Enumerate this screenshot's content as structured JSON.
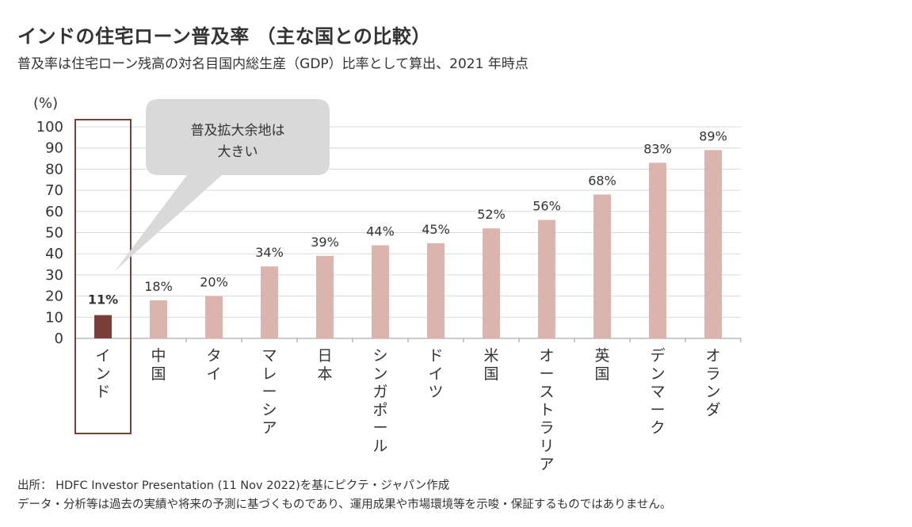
{
  "title": "インドの住宅ローン普及率 （主な国との比較）",
  "subtitle": "普及率は住宅ローン残高の対名目国内総生産（GDP）比率として算出、2021 年時点",
  "footer": {
    "source": "出所： HDFC Investor Presentation (11 Nov 2022)を基にピクテ・ジャパン作成",
    "disclaimer": "データ・分析等は過去の実績や将来の予測に基づくものであり、運用成果や市場環境等を示唆・保証するものではありません。"
  },
  "callout": {
    "line1": "普及拡大余地は",
    "line2": "大きい"
  },
  "colors": {
    "highlight": "#7b3f3a",
    "bar": "#dbb5ad",
    "grid": "#d9d9d9",
    "callout_fill": "#d9d9d9"
  },
  "chart_data": {
    "type": "bar",
    "ylabel": "(%)",
    "ylim": [
      0,
      100
    ],
    "yticks": [
      0,
      10,
      20,
      30,
      40,
      50,
      60,
      70,
      80,
      90,
      100
    ],
    "grid": true,
    "categories": [
      "インド",
      "中国",
      "タイ",
      "マレーシア",
      "日本",
      "シンガポール",
      "ドイツ",
      "米国",
      "オーストラリア",
      "英国",
      "デンマーク",
      "オランダ"
    ],
    "values": [
      11,
      18,
      20,
      34,
      39,
      44,
      45,
      52,
      56,
      68,
      83,
      89
    ],
    "data_labels": [
      "11%",
      "18%",
      "20%",
      "34%",
      "39%",
      "44%",
      "45%",
      "52%",
      "56%",
      "68%",
      "83%",
      "89%"
    ],
    "highlight_index": 0
  }
}
